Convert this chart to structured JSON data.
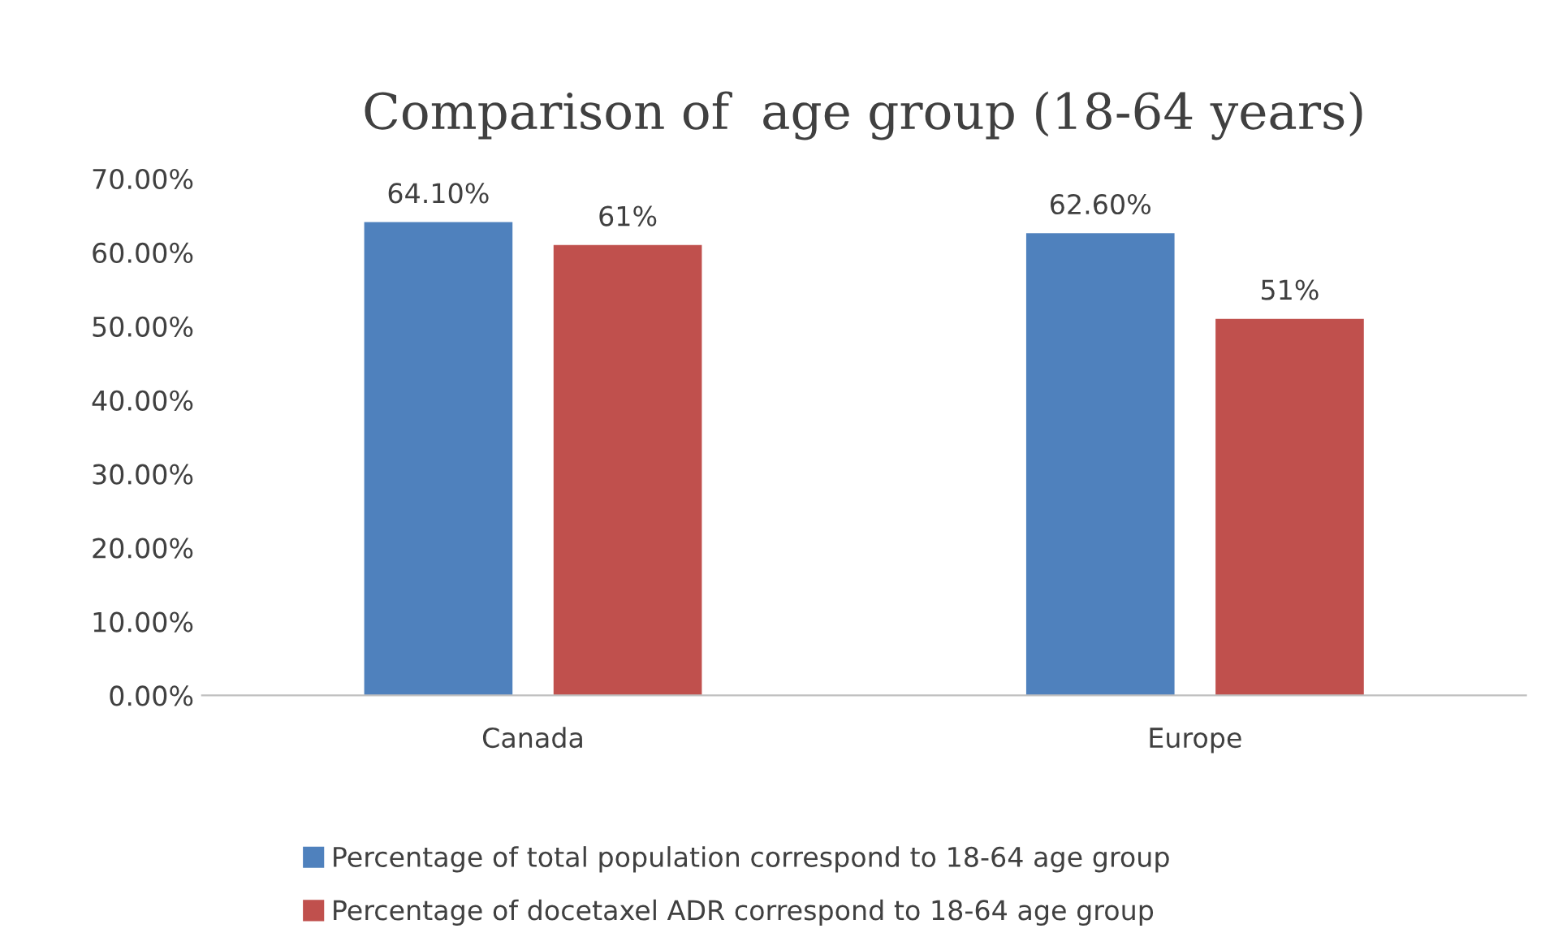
{
  "chart_data": {
    "type": "bar",
    "title": "Comparison of  age group (18-64 years)",
    "categories": [
      "Canada",
      "Europe"
    ],
    "series": [
      {
        "name": "Percentage of total population correspond to 18-64 age group",
        "color": "#4f81bd",
        "values": [
          64.1,
          62.6
        ],
        "value_labels": [
          "64.10%",
          "62.60%"
        ]
      },
      {
        "name": "Percentage of docetaxel ADR correspond to 18-64 age group",
        "color": "#c0504d",
        "values": [
          61,
          51
        ],
        "value_labels": [
          "61%",
          "51%"
        ]
      }
    ],
    "ylim": [
      0,
      70
    ],
    "yticks": [
      {
        "value": 0,
        "label": "0.00%"
      },
      {
        "value": 10,
        "label": "10.00%"
      },
      {
        "value": 20,
        "label": "20.00%"
      },
      {
        "value": 30,
        "label": "30.00%"
      },
      {
        "value": 40,
        "label": "40.00%"
      },
      {
        "value": 50,
        "label": "50.00%"
      },
      {
        "value": 60,
        "label": "60.00%"
      },
      {
        "value": 70,
        "label": "70.00%"
      }
    ],
    "grid": false,
    "legend": "bottom"
  }
}
